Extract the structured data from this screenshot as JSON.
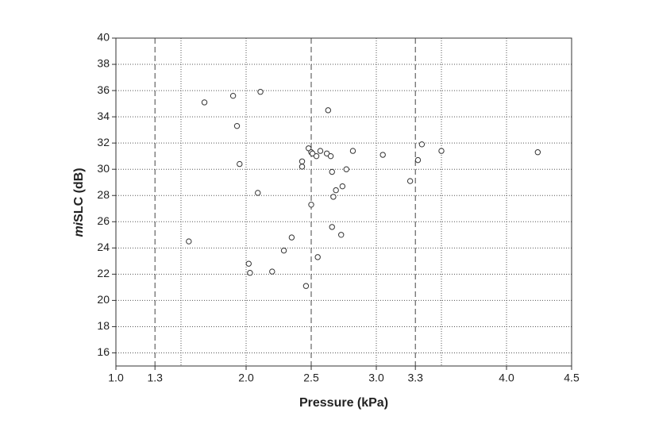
{
  "chart_data": {
    "type": "scatter",
    "xlabel": "Pressure (kPa)",
    "ylabel": [
      "mi",
      "SLC (dB)"
    ],
    "x": [
      1.56,
      1.68,
      1.9,
      2.11,
      1.93,
      1.95,
      2.09,
      2.02,
      2.03,
      2.2,
      2.29,
      2.35,
      2.46,
      2.5,
      2.48,
      2.5,
      2.51,
      2.57,
      2.54,
      2.43,
      2.43,
      2.63,
      2.62,
      2.65,
      2.66,
      2.77,
      2.82,
      2.74,
      2.69,
      2.67,
      2.66,
      2.73,
      2.55,
      3.05,
      3.26,
      3.32,
      3.35,
      3.5,
      4.24
    ],
    "values": [
      24.5,
      35.1,
      35.6,
      35.9,
      33.3,
      30.4,
      28.2,
      22.8,
      22.1,
      22.2,
      23.8,
      24.8,
      21.1,
      27.3,
      31.6,
      31.3,
      31.2,
      31.4,
      31.0,
      30.6,
      30.2,
      34.5,
      31.2,
      31.0,
      29.8,
      30.0,
      31.4,
      28.7,
      28.4,
      27.9,
      25.6,
      25.0,
      23.3,
      31.1,
      29.1,
      30.7,
      31.9,
      31.4,
      31.3
    ],
    "color": "#333333",
    "xlim": [
      1.0,
      4.5
    ],
    "ylim": [
      15,
      40
    ],
    "xticks": [
      {
        "value": 1,
        "label": "1.0"
      },
      1.3,
      {
        "value": 2,
        "label": "2.0"
      },
      2.5,
      {
        "value": 3,
        "label": "3.0"
      },
      3.3,
      {
        "value": 4,
        "label": "4.0"
      },
      4.5
    ],
    "yticks": [
      16,
      18,
      20,
      22,
      24,
      26,
      28,
      30,
      32,
      34,
      36,
      38,
      40
    ],
    "x_grid_lines": [
      1.5,
      2,
      3,
      3.5,
      4
    ],
    "x_reference_lines": [
      1.3,
      2.5,
      3.3
    ],
    "grid": true
  }
}
